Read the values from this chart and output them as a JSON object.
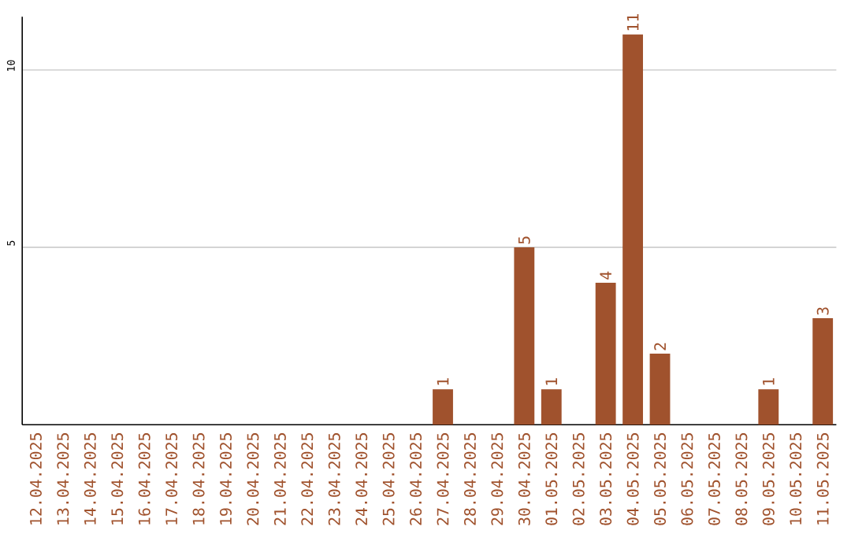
{
  "chart_data": {
    "type": "bar",
    "categories": [
      "12.04.2025",
      "13.04.2025",
      "14.04.2025",
      "15.04.2025",
      "16.04.2025",
      "17.04.2025",
      "18.04.2025",
      "19.04.2025",
      "20.04.2025",
      "21.04.2025",
      "22.04.2025",
      "23.04.2025",
      "24.04.2025",
      "25.04.2025",
      "26.04.2025",
      "27.04.2025",
      "28.04.2025",
      "29.04.2025",
      "30.04.2025",
      "01.05.2025",
      "02.05.2025",
      "03.05.2025",
      "04.05.2025",
      "05.05.2025",
      "06.05.2025",
      "07.05.2025",
      "08.05.2025",
      "09.05.2025",
      "10.05.2025",
      "11.05.2025"
    ],
    "values": [
      0,
      0,
      0,
      0,
      0,
      0,
      0,
      0,
      0,
      0,
      0,
      0,
      0,
      0,
      0,
      1,
      0,
      0,
      5,
      1,
      0,
      4,
      11,
      2,
      0,
      0,
      0,
      1,
      0,
      3
    ],
    "value_labels": [
      null,
      null,
      null,
      null,
      null,
      null,
      null,
      null,
      null,
      null,
      null,
      null,
      null,
      null,
      null,
      "1",
      null,
      null,
      "5",
      "1",
      null,
      "4",
      "11",
      "2",
      null,
      null,
      null,
      "1",
      null,
      "3"
    ],
    "color": "#a0522d",
    "ylim": [
      0,
      11.5
    ],
    "yticks": [
      5,
      10
    ],
    "grid": "y"
  }
}
